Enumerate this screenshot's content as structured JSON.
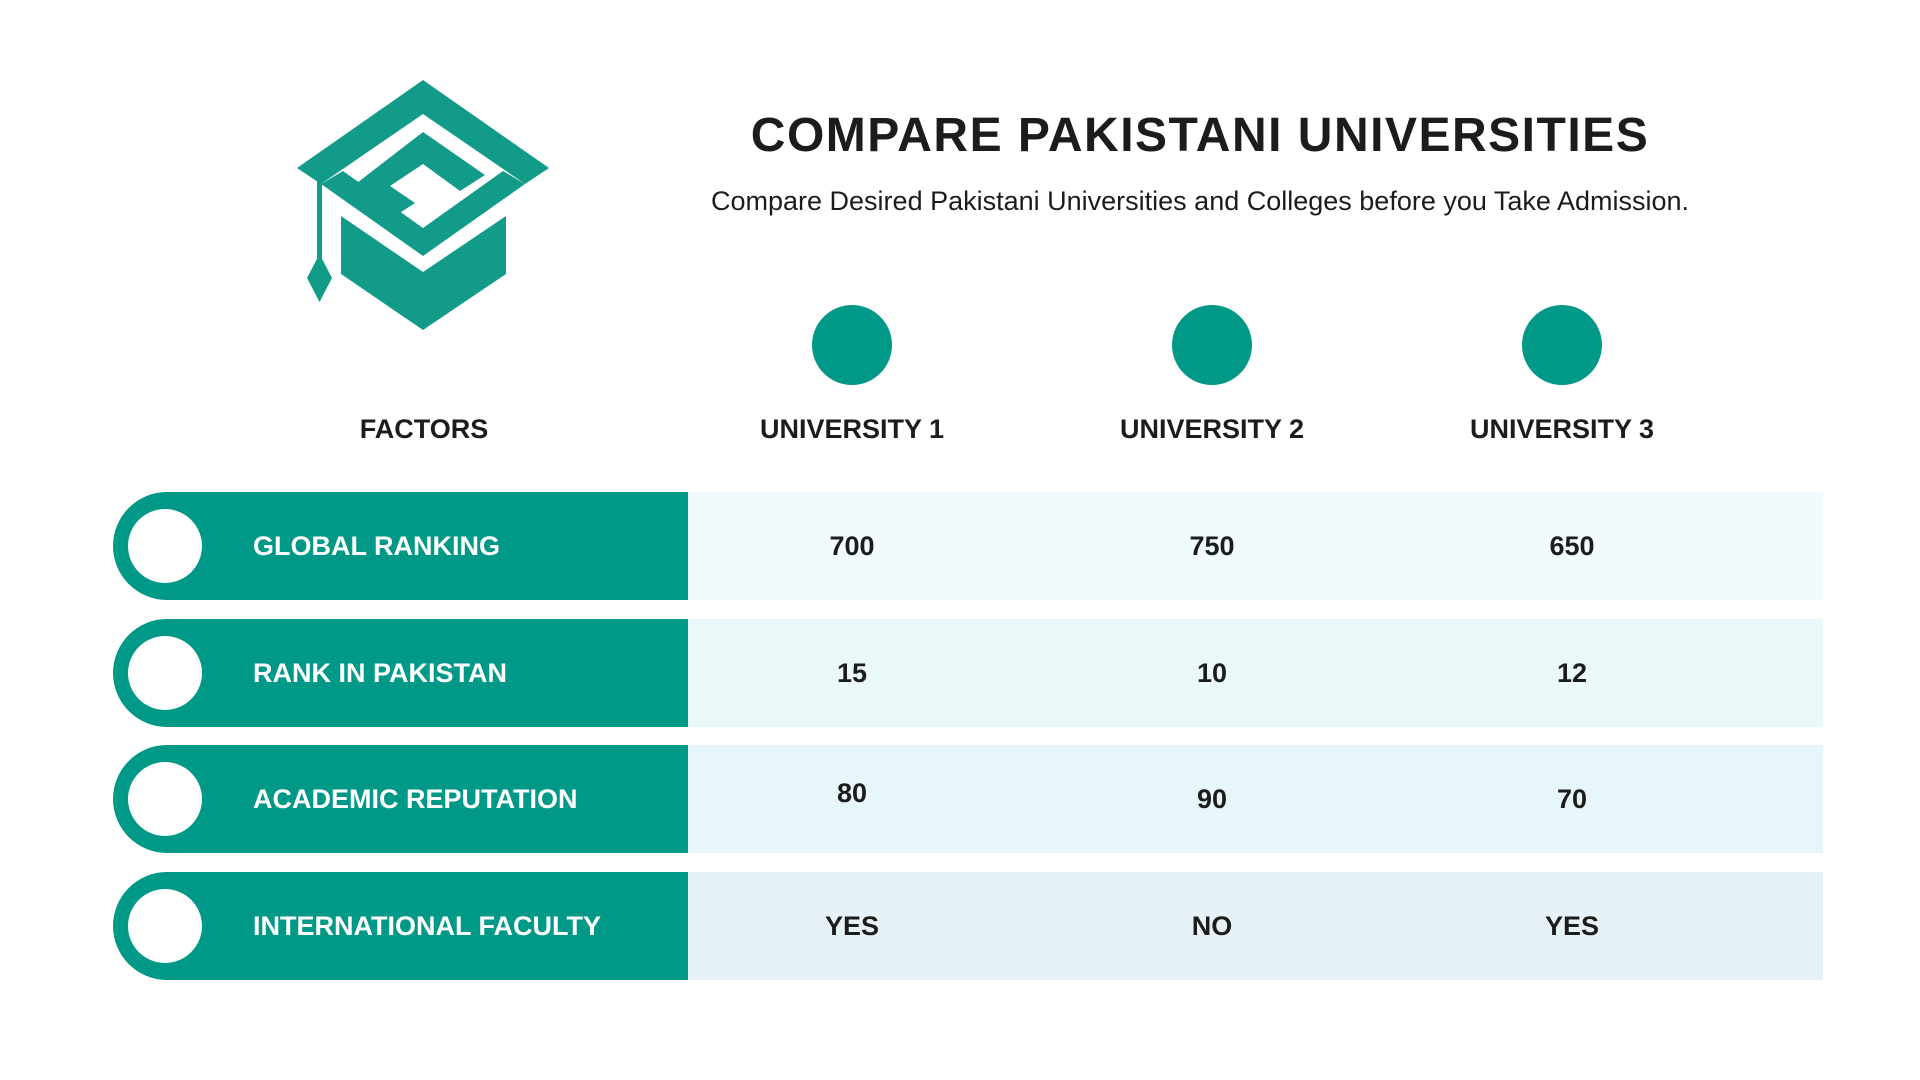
{
  "title": "COMPARE PAKISTANI UNIVERSITIES",
  "subtitle": "Compare Desired Pakistani Universities and Colleges before you Take Admission.",
  "accent_color": "#009886",
  "logo_icon": "graduation-cap-s-logo",
  "table": {
    "factors_header": "FACTORS",
    "universities": [
      "UNIVERSITY 1",
      "UNIVERSITY 2",
      "UNIVERSITY 3"
    ],
    "rows": [
      {
        "factor": "GLOBAL RANKING",
        "values": [
          "700",
          "750",
          "650"
        ],
        "band_color": "#f1fafd"
      },
      {
        "factor": "RANK IN PAKISTAN",
        "values": [
          "15",
          "10",
          "12"
        ],
        "band_color": "#eaf8fa"
      },
      {
        "factor": "ACADEMIC REPUTATION",
        "values": [
          "80",
          "90",
          "70"
        ],
        "band_color": "#e7f6fa"
      },
      {
        "factor": "INTERNATIONAL FACULTY",
        "values": [
          "YES",
          "NO",
          "YES"
        ],
        "band_color": "#e6f2f8"
      }
    ]
  }
}
